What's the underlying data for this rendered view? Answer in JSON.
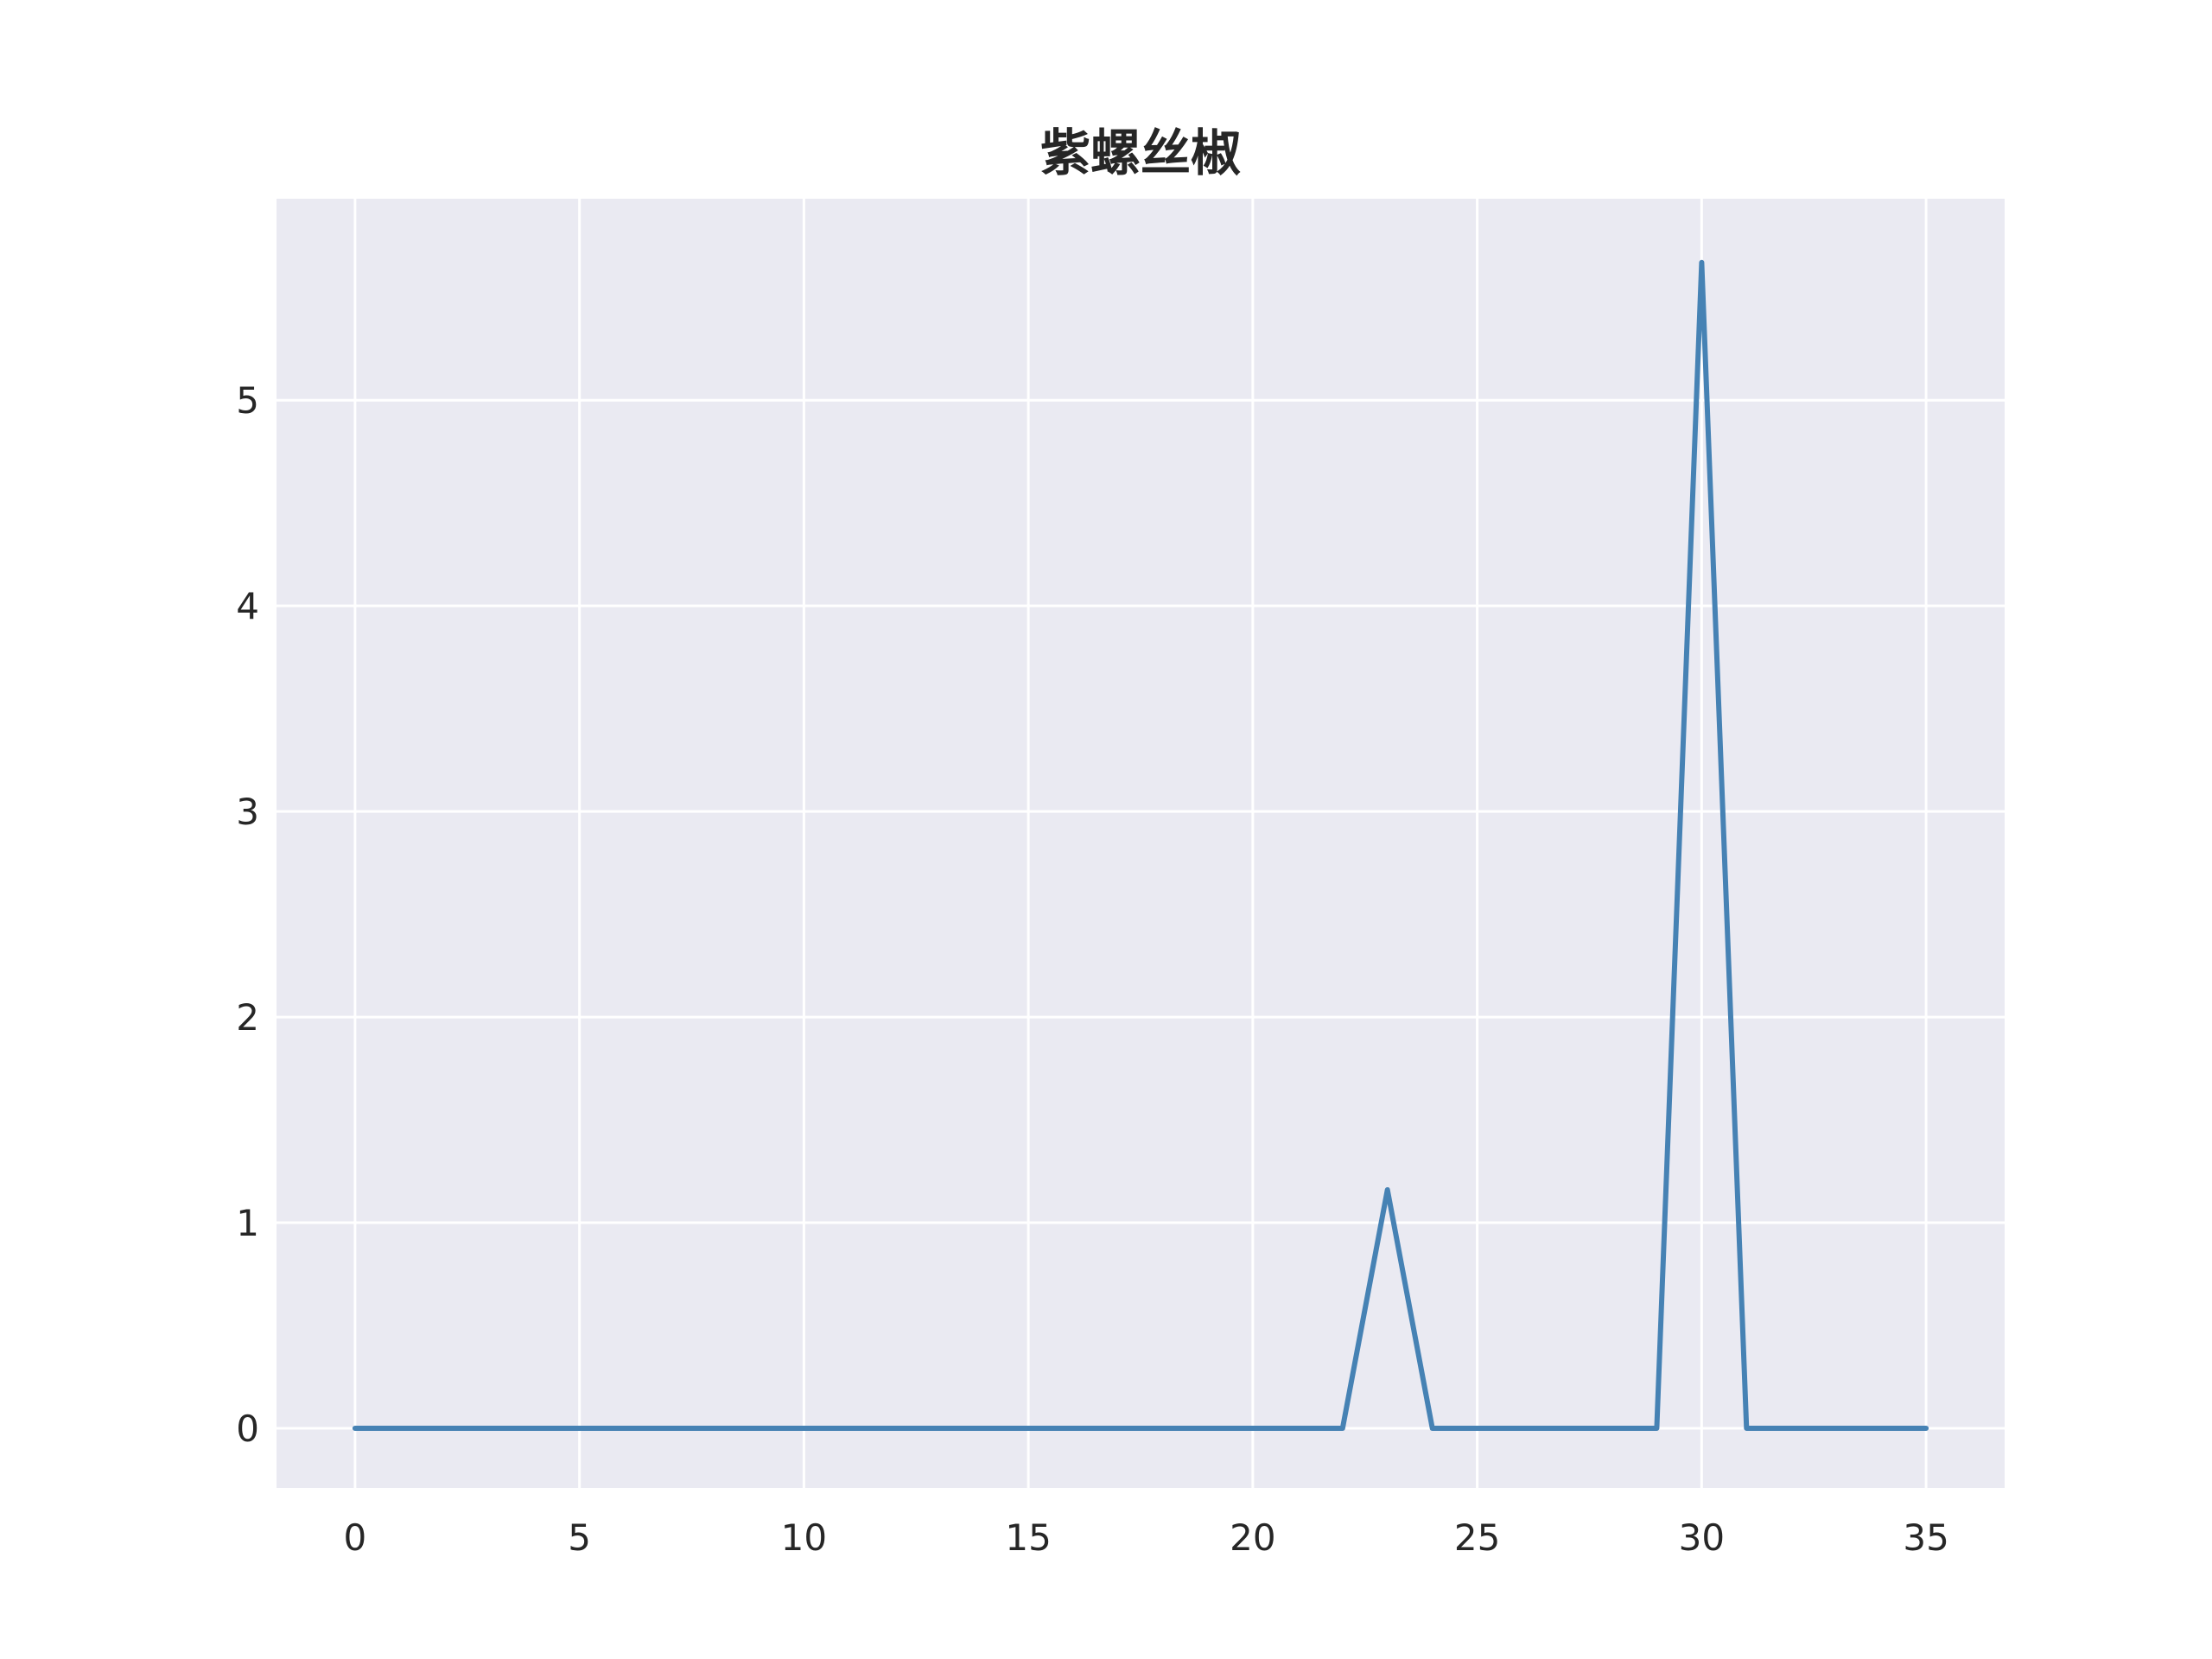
{
  "chart_data": {
    "type": "line",
    "title": "紫螺丝椒",
    "xlabel": "",
    "ylabel": "",
    "xlim": [
      -1.75,
      36.75
    ],
    "ylim": [
      -0.29,
      5.98
    ],
    "x_ticks": [
      0,
      5,
      10,
      15,
      20,
      25,
      30,
      35
    ],
    "y_ticks": [
      0,
      1,
      2,
      3,
      4,
      5
    ],
    "grid": true,
    "background_color": "#eaeaf2",
    "grid_color": "#ffffff",
    "series": [
      {
        "color": "#4682b4",
        "x": [
          0,
          1,
          2,
          3,
          4,
          5,
          6,
          7,
          8,
          9,
          10,
          11,
          12,
          13,
          14,
          15,
          16,
          17,
          18,
          19,
          20,
          21,
          22,
          23,
          24,
          25,
          26,
          27,
          28,
          29,
          30,
          31,
          32,
          33,
          34,
          35
        ],
        "values": [
          0,
          0,
          0,
          0,
          0,
          0,
          0,
          0,
          0,
          0,
          0,
          0,
          0,
          0,
          0,
          0,
          0,
          0,
          0,
          0,
          0,
          0,
          0,
          1.16,
          0,
          0,
          0,
          0,
          0,
          0,
          5.67,
          0,
          0,
          0,
          0,
          0
        ]
      }
    ]
  }
}
